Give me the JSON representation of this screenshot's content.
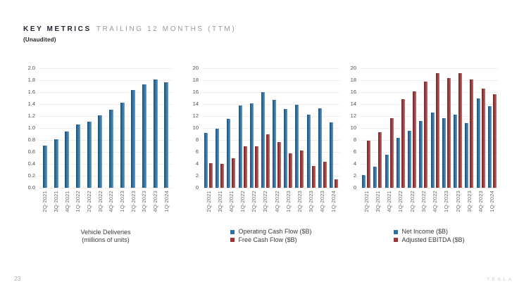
{
  "header": {
    "title_primary": "KEY METRICS",
    "title_secondary": "TRAILING 12 MONTHS (TTM)",
    "subtitle": "(Unaudited)"
  },
  "page": {
    "number": "23",
    "brand": "TESLA"
  },
  "colors": {
    "blue": "#2a70a5",
    "red": "#9e3636",
    "gridline": "#ededed",
    "tick_text": "#4c4c4c",
    "axis_text": "#6b6b6b"
  },
  "chart_data": [
    {
      "type": "bar",
      "title": "Vehicle Deliveries",
      "subtitle": "(millions of units)",
      "color": "blue",
      "grid": true,
      "categories": [
        "2Q-2021",
        "3Q-2021",
        "4Q-2021",
        "1Q-2022",
        "2Q-2022",
        "3Q-2022",
        "4Q-2022",
        "1Q-2023",
        "2Q-2023",
        "3Q-2023",
        "4Q-2023",
        "1Q-2024"
      ],
      "values": [
        0.71,
        0.81,
        0.94,
        1.06,
        1.11,
        1.21,
        1.31,
        1.42,
        1.63,
        1.73,
        1.81,
        1.77
      ],
      "ylim": [
        0,
        2.0
      ],
      "ytick_step": 0.2,
      "ydecimals": 1
    },
    {
      "type": "bar",
      "title": "",
      "grid": true,
      "legend_position": "bottom",
      "categories": [
        "2Q-2021",
        "3Q-2021",
        "4Q-2021",
        "1Q-2022",
        "2Q-2022",
        "3Q-2022",
        "4Q-2022",
        "1Q-2023",
        "2Q-2023",
        "3Q-2023",
        "4Q-2023",
        "1Q-2024"
      ],
      "series": [
        {
          "name": "Operating Cash Flow ($B)",
          "color": "blue",
          "values": [
            9.2,
            9.9,
            11.5,
            13.8,
            14.1,
            16.0,
            14.7,
            13.2,
            13.9,
            12.2,
            13.3,
            11.0
          ]
        },
        {
          "name": "Free Cash Flow ($B)",
          "color": "red",
          "values": [
            4.1,
            4.0,
            5.0,
            7.0,
            7.0,
            8.9,
            7.6,
            5.8,
            6.2,
            3.7,
            4.4,
            1.4
          ]
        }
      ],
      "ylim": [
        0,
        20
      ],
      "ytick_step": 2,
      "ydecimals": 0
    },
    {
      "type": "bar",
      "title": "",
      "grid": true,
      "legend_position": "bottom",
      "categories": [
        "2Q-2021",
        "3Q-2021",
        "4Q-2021",
        "1Q-2022",
        "2Q-2022",
        "3Q-2022",
        "4Q-2022",
        "1Q-2023",
        "2Q-2023",
        "3Q-2023",
        "4Q-2023",
        "1Q-2024"
      ],
      "series": [
        {
          "name": "Net Income ($B)",
          "color": "blue",
          "values": [
            2.1,
            3.5,
            5.5,
            8.4,
            9.5,
            11.2,
            12.6,
            11.7,
            12.2,
            10.8,
            15.0,
            13.6
          ]
        },
        {
          "name": "Adjusted EBITDA ($B)",
          "color": "red",
          "values": [
            7.9,
            9.3,
            11.6,
            14.8,
            16.1,
            17.8,
            19.2,
            18.4,
            19.2,
            18.1,
            16.6,
            15.7
          ]
        }
      ],
      "ylim": [
        0,
        20
      ],
      "ytick_step": 2,
      "ydecimals": 0
    }
  ]
}
